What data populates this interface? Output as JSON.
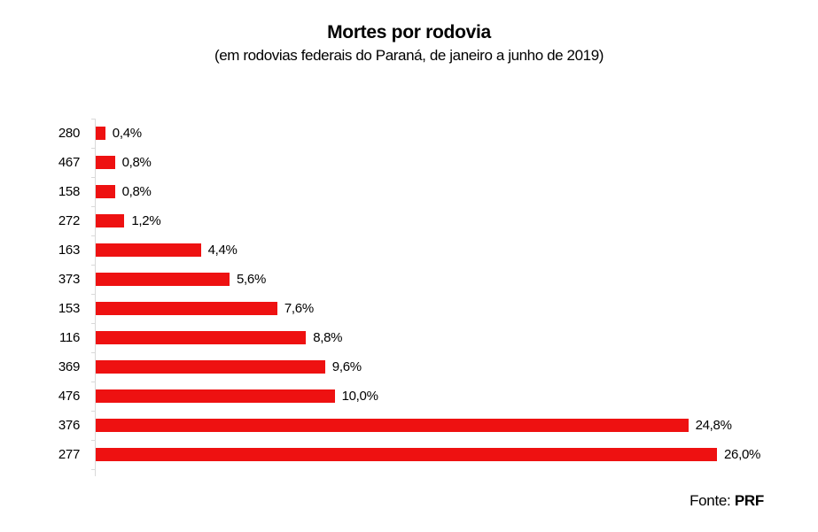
{
  "title": "Mortes por rodovia",
  "subtitle": "(em rodovias federais do Paraná, de janeiro a junho de 2019)",
  "source": {
    "prefix": "Fonte: ",
    "name": "PRF"
  },
  "colors": {
    "bar": "#ee1111",
    "axis": "#d9d9d9",
    "text": "#000000",
    "background": "#ffffff"
  },
  "chart_data": {
    "type": "bar",
    "orientation": "horizontal",
    "title": "Mortes por rodovia",
    "subtitle": "(em rodovias federais do Paraná, de janeiro a junho de 2019)",
    "categories": [
      "280",
      "467",
      "158",
      "272",
      "163",
      "373",
      "153",
      "116",
      "369",
      "476",
      "376",
      "277"
    ],
    "values": [
      0.4,
      0.8,
      0.8,
      1.2,
      4.4,
      5.6,
      7.6,
      8.8,
      9.6,
      10.0,
      24.8,
      26.0
    ],
    "value_labels": [
      "0,4%",
      "0,8%",
      "0,8%",
      "1,2%",
      "4,4%",
      "5,6%",
      "7,6%",
      "8,8%",
      "9,6%",
      "10,0%",
      "24,8%",
      "26,0%"
    ],
    "xlabel": "",
    "ylabel": "",
    "xlim": [
      0,
      28
    ],
    "grid": false,
    "legend": null,
    "source": "Fonte: PRF"
  }
}
